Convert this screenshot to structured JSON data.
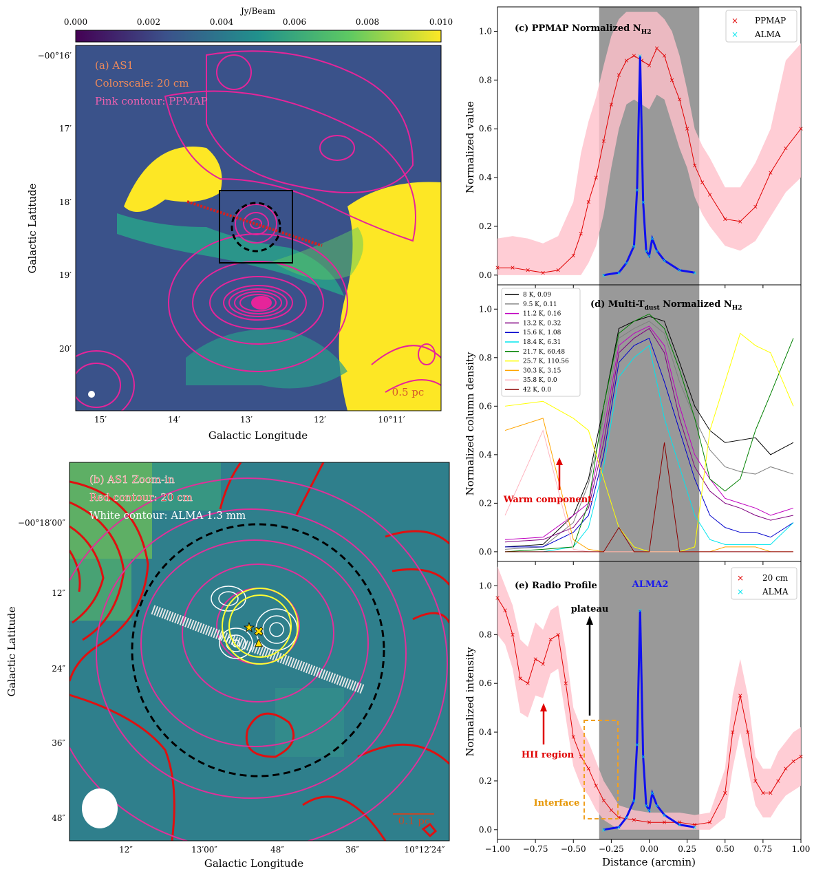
{
  "panel_a": {
    "annotation": [
      "(a) AS1",
      "Colorscale: 20 cm",
      "Pink contour: PPMAP"
    ],
    "colorbar_label": "Jy/Beam",
    "colorbar_ticks": [
      "0.000",
      "0.002",
      "0.004",
      "0.006",
      "0.008",
      "0.010"
    ],
    "y_ticks": [
      "−00°16′",
      "17′",
      "18′",
      "19′",
      "20′"
    ],
    "x_ticks": [
      "15′",
      "14′",
      "13′",
      "12′",
      "10°11′"
    ],
    "xlabel": "Galactic Longitude",
    "ylabel": "Galactic Latitude",
    "scalebar": "0.5 pc"
  },
  "panel_b": {
    "annotation": [
      "(b) AS1 Zoom-in",
      "Red contour: 20 cm",
      "White contour: ALMA 1.3 mm"
    ],
    "y_ticks": [
      "−00°18′00″",
      "12″",
      "24″",
      "36″",
      "48″"
    ],
    "x_ticks": [
      "12″",
      "13′00″",
      "48″",
      "36″",
      "10°12′24″"
    ],
    "xlabel": "Galactic Longitude",
    "ylabel": "Galactic Latitude",
    "scalebar": "0.1 pc"
  },
  "panel_c": {
    "title": "(c) PPMAP Normalized N",
    "title_sub": "H2",
    "ylabel": "Normalized value",
    "legend": [
      "PPMAP",
      "ALMA"
    ],
    "y_ticks": [
      "0.0",
      "0.2",
      "0.4",
      "0.6",
      "0.8",
      "1.0"
    ]
  },
  "panel_d": {
    "title": "(d) Multi-T",
    "title_sub1": "dust",
    "title_mid": " Normalized N",
    "title_sub2": "H2",
    "ylabel": "Normalized column density",
    "y_ticks": [
      "0.0",
      "0.2",
      "0.4",
      "0.6",
      "0.8",
      "1.0"
    ],
    "legend": [
      "8 K, 0.09",
      "9.5 K, 0.11",
      "11.2 K, 0.16",
      "13.2 K, 0.32",
      "15.6 K, 1.08",
      "18.4 K, 6.31",
      "21.7 K, 60.48",
      "25.7 K, 110.56",
      "30.3 K, 3.15",
      "35.8 K, 0.0",
      "42 K, 0.0"
    ],
    "legend_colors": [
      "#000000",
      "#808080",
      "#c000c0",
      "#800080",
      "#0000cc",
      "#00e5ee",
      "#008000",
      "#ffff00",
      "#ffa500",
      "#ffb6c1",
      "#8b0000"
    ],
    "warm_label": "Warm component"
  },
  "panel_e": {
    "title": "(e) Radio Profile",
    "ylabel": "Normalized intensity",
    "xlabel": "Distance (arcmin)",
    "legend": [
      "20 cm",
      "ALMA"
    ],
    "labels": {
      "alma2": "ALMA2",
      "plateau": "plateau",
      "hii": "HII region",
      "interface": "Interface"
    },
    "y_ticks": [
      "0.0",
      "0.2",
      "0.4",
      "0.6",
      "0.8",
      "1.0"
    ],
    "x_ticks": [
      "−1.00",
      "−0.75",
      "−0.50",
      "−0.25",
      "0.00",
      "0.25",
      "0.50",
      "0.75",
      "1.00"
    ]
  },
  "chart_data": [
    {
      "type": "line",
      "panel": "c",
      "title": "(c) PPMAP Normalized N_H2",
      "ylabel": "Normalized value",
      "xlim": [
        -1.0,
        1.0
      ],
      "ylim": [
        -0.04,
        1.1
      ],
      "shaded_region_x": [
        -0.33,
        0.33
      ],
      "series": [
        {
          "name": "PPMAP",
          "x": [
            -1.0,
            -0.9,
            -0.8,
            -0.7,
            -0.6,
            -0.5,
            -0.45,
            -0.4,
            -0.35,
            -0.3,
            -0.25,
            -0.2,
            -0.15,
            -0.1,
            -0.05,
            0.0,
            0.05,
            0.1,
            0.15,
            0.2,
            0.25,
            0.3,
            0.35,
            0.4,
            0.5,
            0.6,
            0.7,
            0.8,
            0.9,
            1.0
          ],
          "y": [
            0.03,
            0.03,
            0.02,
            0.01,
            0.02,
            0.08,
            0.17,
            0.3,
            0.4,
            0.55,
            0.7,
            0.82,
            0.88,
            0.9,
            0.88,
            0.86,
            0.93,
            0.9,
            0.8,
            0.72,
            0.6,
            0.45,
            0.38,
            0.33,
            0.23,
            0.22,
            0.28,
            0.42,
            0.52,
            0.6
          ],
          "band_upper": [
            0.15,
            0.16,
            0.15,
            0.13,
            0.16,
            0.3,
            0.5,
            0.63,
            0.73,
            0.86,
            0.98,
            1.05,
            1.08,
            1.08,
            1.08,
            1.08,
            1.08,
            1.05,
            1.0,
            0.9,
            0.76,
            0.6,
            0.53,
            0.48,
            0.36,
            0.36,
            0.46,
            0.6,
            0.88,
            0.95
          ],
          "band_lower": [
            0.0,
            0.0,
            0.0,
            0.0,
            0.0,
            0.0,
            0.0,
            0.05,
            0.12,
            0.25,
            0.44,
            0.6,
            0.7,
            0.72,
            0.7,
            0.68,
            0.74,
            0.72,
            0.62,
            0.52,
            0.44,
            0.32,
            0.25,
            0.2,
            0.12,
            0.1,
            0.14,
            0.24,
            0.34,
            0.4
          ]
        },
        {
          "name": "ALMA",
          "x": [
            -0.3,
            -0.2,
            -0.15,
            -0.1,
            -0.08,
            -0.06,
            -0.04,
            -0.02,
            0.0,
            0.02,
            0.05,
            0.1,
            0.2,
            0.3
          ],
          "y": [
            0.0,
            0.01,
            0.05,
            0.12,
            0.35,
            0.9,
            0.3,
            0.1,
            0.08,
            0.15,
            0.1,
            0.06,
            0.02,
            0.01
          ]
        }
      ]
    },
    {
      "type": "line",
      "panel": "d",
      "title": "(d) Multi-T_dust Normalized N_H2",
      "ylabel": "Normalized column density",
      "xlim": [
        -1.0,
        1.0
      ],
      "ylim": [
        -0.04,
        1.1
      ],
      "shaded_region_x": [
        -0.33,
        0.33
      ],
      "x": [
        -0.95,
        -0.7,
        -0.5,
        -0.4,
        -0.3,
        -0.2,
        -0.1,
        0.0,
        0.1,
        0.2,
        0.3,
        0.4,
        0.5,
        0.6,
        0.7,
        0.8,
        0.95
      ],
      "series": [
        {
          "name": "8 K, 0.09",
          "y": [
            0.02,
            0.03,
            0.15,
            0.3,
            0.6,
            0.92,
            0.95,
            0.97,
            0.95,
            0.78,
            0.6,
            0.5,
            0.45,
            0.46,
            0.47,
            0.4,
            0.45
          ]
        },
        {
          "name": "9.5 K, 0.11",
          "y": [
            0.01,
            0.02,
            0.12,
            0.28,
            0.55,
            0.88,
            0.92,
            0.95,
            0.9,
            0.7,
            0.55,
            0.42,
            0.35,
            0.33,
            0.32,
            0.35,
            0.32
          ]
        },
        {
          "name": "11.2 K, 0.16",
          "y": [
            0.05,
            0.06,
            0.15,
            0.2,
            0.5,
            0.85,
            0.9,
            0.93,
            0.85,
            0.6,
            0.4,
            0.3,
            0.22,
            0.2,
            0.18,
            0.15,
            0.18
          ]
        },
        {
          "name": "13.2 K, 0.32",
          "y": [
            0.04,
            0.05,
            0.1,
            0.18,
            0.45,
            0.82,
            0.88,
            0.92,
            0.82,
            0.55,
            0.35,
            0.25,
            0.2,
            0.18,
            0.15,
            0.13,
            0.15
          ]
        },
        {
          "name": "15.6 K, 1.08",
          "y": [
            0.02,
            0.02,
            0.08,
            0.15,
            0.4,
            0.78,
            0.85,
            0.88,
            0.7,
            0.5,
            0.3,
            0.15,
            0.1,
            0.08,
            0.08,
            0.06,
            0.12
          ]
        },
        {
          "name": "18.4 K, 6.31",
          "y": [
            0.0,
            0.0,
            0.02,
            0.1,
            0.35,
            0.72,
            0.8,
            0.85,
            0.55,
            0.35,
            0.15,
            0.05,
            0.03,
            0.03,
            0.03,
            0.03,
            0.12
          ]
        },
        {
          "name": "21.7 K, 60.48",
          "y": [
            0.0,
            0.01,
            0.02,
            0.2,
            0.6,
            0.9,
            0.95,
            0.98,
            0.92,
            0.75,
            0.55,
            0.3,
            0.25,
            0.3,
            0.5,
            0.65,
            0.88
          ]
        },
        {
          "name": "25.7 K, 110.56",
          "y": [
            0.6,
            0.62,
            0.55,
            0.5,
            0.3,
            0.1,
            0.02,
            0.0,
            0.0,
            0.0,
            0.02,
            0.5,
            0.7,
            0.9,
            0.85,
            0.82,
            0.6
          ]
        },
        {
          "name": "30.3 K, 3.15",
          "y": [
            0.5,
            0.55,
            0.05,
            0.01,
            0.0,
            0.0,
            0.0,
            0.0,
            0.0,
            0.0,
            0.0,
            0.0,
            0.02,
            0.02,
            0.02,
            0.0,
            0.0
          ]
        },
        {
          "name": "35.8 K, 0.0",
          "y": [
            0.15,
            0.5,
            0.01,
            0.0,
            0.0,
            0.0,
            0.0,
            0.0,
            0.0,
            0.0,
            0.0,
            0.0,
            0.0,
            0.0,
            0.0,
            0.0,
            0.0
          ]
        },
        {
          "name": "42 K, 0.0",
          "y": [
            0.0,
            0.0,
            0.0,
            0.0,
            0.0,
            0.1,
            0.0,
            0.0,
            0.45,
            0.0,
            0.0,
            0.0,
            0.0,
            0.0,
            0.0,
            0.0,
            0.0
          ]
        }
      ]
    },
    {
      "type": "line",
      "panel": "e",
      "title": "(e) Radio Profile",
      "ylabel": "Normalized intensity",
      "xlabel": "Distance (arcmin)",
      "xlim": [
        -1.0,
        1.0
      ],
      "ylim": [
        -0.04,
        1.1
      ],
      "shaded_region_x": [
        -0.33,
        0.33
      ],
      "series": [
        {
          "name": "20 cm",
          "x": [
            -1.0,
            -0.95,
            -0.9,
            -0.85,
            -0.8,
            -0.75,
            -0.7,
            -0.65,
            -0.6,
            -0.55,
            -0.5,
            -0.45,
            -0.4,
            -0.35,
            -0.3,
            -0.25,
            -0.2,
            -0.1,
            0.0,
            0.1,
            0.2,
            0.3,
            0.4,
            0.5,
            0.55,
            0.6,
            0.65,
            0.7,
            0.75,
            0.8,
            0.85,
            0.9,
            0.95,
            1.0
          ],
          "y": [
            0.95,
            0.9,
            0.8,
            0.62,
            0.6,
            0.7,
            0.68,
            0.78,
            0.8,
            0.6,
            0.38,
            0.3,
            0.25,
            0.18,
            0.12,
            0.08,
            0.05,
            0.04,
            0.03,
            0.03,
            0.03,
            0.02,
            0.03,
            0.15,
            0.4,
            0.55,
            0.4,
            0.2,
            0.15,
            0.15,
            0.2,
            0.25,
            0.28,
            0.3
          ],
          "band_upper": [
            1.08,
            1.0,
            0.92,
            0.78,
            0.75,
            0.85,
            0.82,
            0.9,
            0.92,
            0.74,
            0.5,
            0.42,
            0.36,
            0.28,
            0.2,
            0.15,
            0.1,
            0.08,
            0.07,
            0.07,
            0.07,
            0.06,
            0.07,
            0.25,
            0.55,
            0.7,
            0.55,
            0.3,
            0.25,
            0.25,
            0.32,
            0.36,
            0.4,
            0.42
          ],
          "band_lower": [
            0.8,
            0.76,
            0.66,
            0.48,
            0.46,
            0.55,
            0.54,
            0.64,
            0.66,
            0.46,
            0.26,
            0.18,
            0.14,
            0.08,
            0.04,
            0.02,
            0.0,
            0.0,
            0.0,
            0.0,
            0.0,
            0.0,
            0.0,
            0.05,
            0.25,
            0.4,
            0.25,
            0.1,
            0.05,
            0.05,
            0.1,
            0.14,
            0.16,
            0.18
          ]
        },
        {
          "name": "ALMA",
          "x": [
            -0.3,
            -0.2,
            -0.15,
            -0.1,
            -0.08,
            -0.06,
            -0.04,
            -0.02,
            0.0,
            0.02,
            0.05,
            0.1,
            0.2,
            0.3
          ],
          "y": [
            0.0,
            0.01,
            0.05,
            0.12,
            0.35,
            0.9,
            0.3,
            0.1,
            0.08,
            0.15,
            0.1,
            0.06,
            0.02,
            0.01
          ]
        }
      ]
    }
  ]
}
